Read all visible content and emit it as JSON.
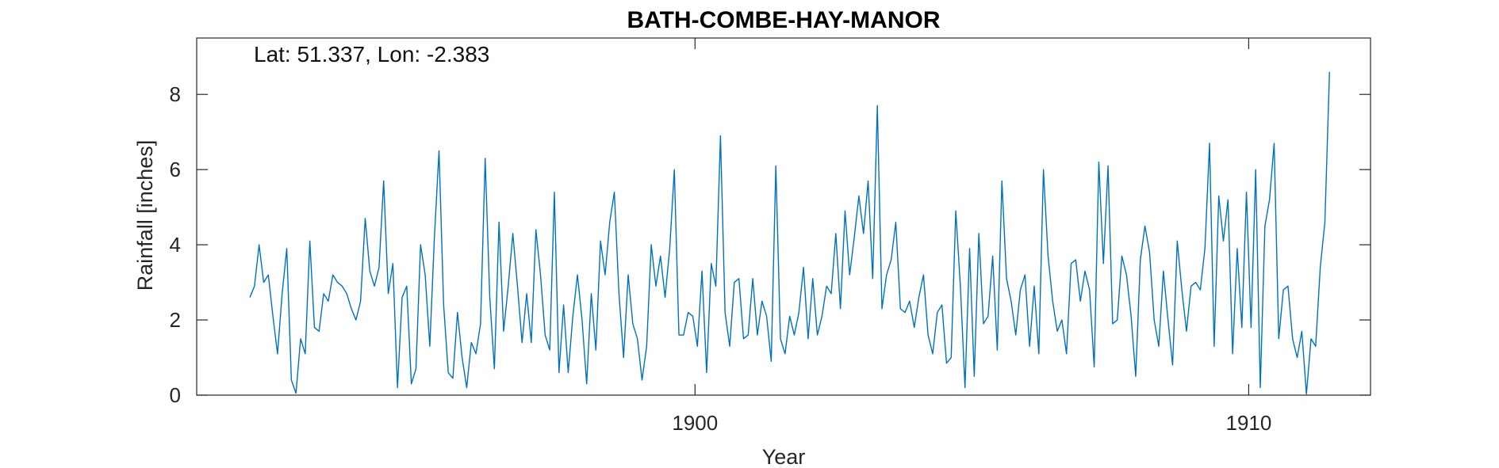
{
  "chart_data": {
    "type": "line",
    "title": "BATH-COMBE-HAY-MANOR",
    "annotation": "Lat: 51.337, Lon: -2.383",
    "xlabel": "Year",
    "ylabel": "Rainfall [inches]",
    "xlim": [
      1891,
      1912.2
    ],
    "ylim": [
      0,
      9.5
    ],
    "x_ticks": [
      1900,
      1910
    ],
    "y_ticks": [
      0,
      2,
      4,
      6,
      8
    ],
    "grid": false,
    "line_color": "#0072BD",
    "series": [
      {
        "x_start": 1891.96,
        "x_step": 0.08333,
        "values": [
          2.6,
          2.9,
          4.0,
          3.0,
          3.2,
          2.1,
          1.1,
          2.7,
          3.9,
          0.4,
          0.05,
          1.5,
          1.1,
          4.1,
          1.8,
          1.7,
          2.7,
          2.5,
          3.2,
          3.0,
          2.9,
          2.7,
          2.3,
          2.0,
          2.5,
          4.7,
          3.3,
          2.9,
          3.4,
          5.7,
          2.7,
          3.5,
          0.2,
          2.6,
          2.9,
          0.3,
          0.7,
          4.0,
          3.2,
          1.3,
          4.2,
          6.5,
          2.4,
          0.6,
          0.45,
          2.2,
          1.0,
          0.2,
          1.4,
          1.1,
          1.9,
          6.3,
          2.6,
          0.7,
          4.6,
          1.7,
          2.9,
          4.3,
          2.9,
          1.4,
          2.7,
          1.4,
          4.4,
          3.2,
          1.6,
          1.2,
          5.4,
          0.6,
          2.4,
          0.6,
          2.1,
          3.2,
          2.0,
          0.3,
          2.7,
          1.2,
          4.1,
          3.2,
          4.6,
          5.4,
          2.7,
          1.0,
          3.2,
          1.9,
          1.5,
          0.4,
          1.3,
          4.0,
          2.9,
          3.7,
          2.6,
          3.9,
          6.0,
          1.6,
          1.6,
          2.2,
          2.1,
          1.3,
          3.3,
          0.6,
          3.5,
          2.9,
          6.9,
          2.2,
          1.3,
          3.0,
          3.1,
          1.5,
          1.6,
          3.1,
          1.6,
          2.5,
          2.1,
          0.9,
          6.1,
          1.5,
          1.1,
          2.1,
          1.6,
          2.2,
          3.4,
          1.5,
          3.1,
          1.6,
          2.1,
          2.9,
          2.7,
          4.3,
          2.3,
          4.9,
          3.2,
          4.2,
          5.3,
          4.3,
          5.7,
          3.1,
          7.7,
          2.3,
          3.2,
          3.6,
          4.6,
          2.3,
          2.2,
          2.5,
          1.8,
          2.6,
          3.2,
          1.6,
          1.1,
          2.2,
          2.4,
          0.85,
          1.0,
          4.9,
          2.9,
          0.2,
          3.9,
          0.5,
          4.3,
          1.9,
          2.1,
          3.7,
          1.2,
          5.7,
          3.1,
          2.5,
          1.6,
          2.8,
          3.2,
          1.3,
          2.9,
          1.1,
          6.0,
          3.7,
          2.5,
          1.7,
          2.0,
          1.1,
          3.5,
          3.6,
          2.5,
          3.3,
          2.8,
          0.75,
          6.2,
          3.5,
          6.1,
          1.9,
          2.0,
          3.7,
          3.2,
          2.1,
          0.5,
          3.6,
          4.5,
          3.8,
          2.0,
          1.3,
          3.3,
          2.0,
          0.8,
          4.1,
          2.8,
          1.7,
          2.9,
          3.0,
          2.8,
          3.9,
          6.7,
          1.3,
          5.3,
          4.1,
          5.2,
          1.1,
          3.9,
          1.8,
          5.4,
          1.8,
          6.0,
          0.2,
          4.5,
          5.2,
          6.7,
          1.5,
          2.8,
          2.9,
          1.5,
          1.0,
          1.7,
          0.03,
          1.5,
          1.3,
          3.4,
          4.6,
          8.6
        ]
      }
    ]
  }
}
